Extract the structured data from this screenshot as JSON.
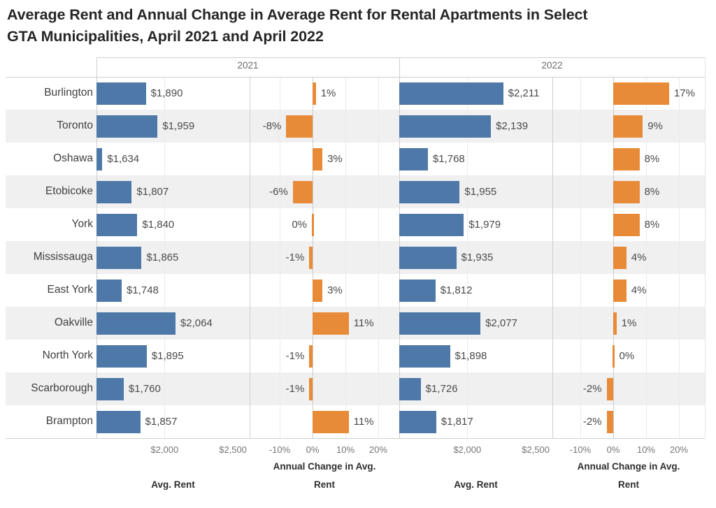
{
  "title": {
    "line1": "Average Rent and Annual Change in Average Rent for Rental Apartments in Select",
    "line2": "GTA Municipalities, April 2021 and April 2022"
  },
  "chart_data": {
    "type": "bar",
    "orientation": "horizontal",
    "group_headers": [
      "2021",
      "2022"
    ],
    "categories": [
      "Burlington",
      "Toronto",
      "Oshawa",
      "Etobicoke",
      "York",
      "Mississauga",
      "East York",
      "Oakville",
      "North York",
      "Scarborough",
      "Brampton"
    ],
    "series": [
      {
        "name": "2021 Avg. Rent",
        "values": [
          1890,
          1959,
          1634,
          1807,
          1840,
          1865,
          1748,
          2064,
          1895,
          1760,
          1857
        ],
        "labels": [
          "$1,890",
          "$1,959",
          "$1,634",
          "$1,807",
          "$1,840",
          "$1,865",
          "$1,748",
          "$2,064",
          "$1,895",
          "$1,760",
          "$1,857"
        ]
      },
      {
        "name": "2021 Annual Change in Avg. Rent (%)",
        "values": [
          1,
          -8,
          3,
          -6,
          0,
          -1,
          3,
          11,
          -1,
          -1,
          11
        ],
        "labels": [
          "1%",
          "-8%",
          "3%",
          "-6%",
          "0%",
          "-1%",
          "3%",
          "11%",
          "-1%",
          "-1%",
          "11%"
        ],
        "label_sides": [
          "right",
          "left",
          "right",
          "left",
          "left",
          "left",
          "right",
          "right",
          "left",
          "left",
          "right"
        ]
      },
      {
        "name": "2022 Avg. Rent",
        "values": [
          2211,
          2139,
          1768,
          1955,
          1979,
          1935,
          1812,
          2077,
          1898,
          1726,
          1817
        ],
        "labels": [
          "$2,211",
          "$2,139",
          "$1,768",
          "$1,955",
          "$1,979",
          "$1,935",
          "$1,812",
          "$2,077",
          "$1,898",
          "$1,726",
          "$1,817"
        ]
      },
      {
        "name": "2022 Annual Change in Avg. Rent (%)",
        "values": [
          17,
          9,
          8,
          8,
          8,
          4,
          4,
          1,
          0,
          -2,
          -2
        ],
        "labels": [
          "17%",
          "9%",
          "8%",
          "8%",
          "8%",
          "4%",
          "4%",
          "1%",
          "0%",
          "-2%",
          "-2%"
        ],
        "label_sides": [
          "right",
          "right",
          "right",
          "right",
          "right",
          "right",
          "right",
          "right",
          "right",
          "left",
          "left"
        ]
      }
    ],
    "rent_axis": {
      "title": "Avg. Rent",
      "min": 1600,
      "max": 2500,
      "ticks": [
        {
          "label": "$2,000",
          "value": 2000
        },
        {
          "label": "$2,500",
          "value": 2500
        }
      ]
    },
    "change_axis": {
      "title_line1": "Annual Change in Avg.",
      "title_line2": "Rent",
      "ticks": [
        {
          "label": "-10%",
          "value": -10
        },
        {
          "label": "0%",
          "value": 0
        },
        {
          "label": "10%",
          "value": 10
        },
        {
          "label": "20%",
          "value": 20
        }
      ]
    },
    "colors": {
      "rent_bar": "#4d78a7",
      "change_bar": "#e88b38",
      "row_band": "#f0f0f1"
    },
    "grid": true,
    "legend": "none"
  }
}
